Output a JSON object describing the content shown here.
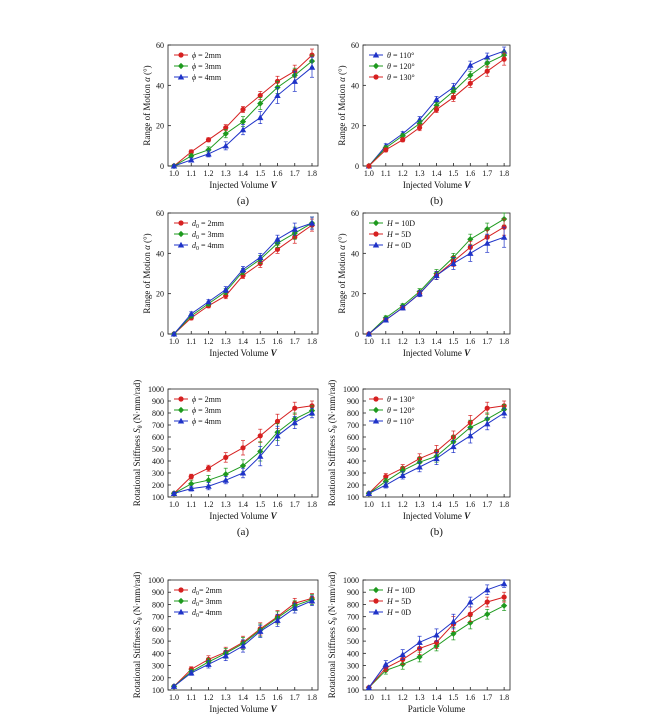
{
  "colors": {
    "red": "#d62020",
    "green": "#1e9a1e",
    "blue": "#1f33c8",
    "axis": "#222222"
  },
  "chart_data": [
    {
      "type": "line",
      "id": "rom-phi",
      "title": "",
      "xlabel": "Injected Volume",
      "xvar": "V",
      "ylabel": "Range of Motion",
      "yvar": "α",
      "yunit": "(°)",
      "xlim": [
        1.0,
        1.8
      ],
      "ylim": [
        0,
        60
      ],
      "xticks": [
        "1.0",
        "1.1",
        "1.2",
        "1.3",
        "1.4",
        "1.5",
        "1.6",
        "1.7",
        "1.8"
      ],
      "yticks": [
        "0",
        "20",
        "40",
        "60"
      ],
      "legend": "top-left",
      "caption": "(a)",
      "x": [
        1.0,
        1.1,
        1.2,
        1.3,
        1.4,
        1.5,
        1.6,
        1.7,
        1.8
      ],
      "series": [
        {
          "name": "ϕ = 2mm",
          "color": "red",
          "marker": "circle",
          "values": [
            0,
            7,
            13,
            19,
            28,
            35,
            42,
            47,
            55
          ],
          "err": [
            0.5,
            1,
            1,
            1.5,
            1.5,
            2,
            2.5,
            3,
            3
          ]
        },
        {
          "name": "ϕ = 3mm",
          "color": "green",
          "marker": "diamond",
          "values": [
            0,
            5,
            8,
            16,
            22,
            31,
            39,
            45,
            52
          ],
          "err": [
            0.5,
            1,
            1.5,
            2,
            2.5,
            3,
            3,
            3.5,
            3
          ]
        },
        {
          "name": "ϕ = 4mm",
          "color": "blue",
          "marker": "triangle",
          "values": [
            0,
            3,
            6,
            10,
            18,
            24,
            35,
            42,
            49
          ],
          "err": [
            0.5,
            1,
            1.5,
            2,
            2.5,
            3,
            4,
            5,
            5
          ]
        }
      ]
    },
    {
      "type": "line",
      "id": "rom-theta",
      "title": "",
      "xlabel": "Injected Volume",
      "xvar": "V",
      "ylabel": "Range of Motion",
      "yvar": "α",
      "yunit": "(°)",
      "xlim": [
        1.0,
        1.8
      ],
      "ylim": [
        0,
        60
      ],
      "xticks": [
        "1.0",
        "1.1",
        "1.2",
        "1.3",
        "1.4",
        "1.5",
        "1.6",
        "1.7",
        "1.8"
      ],
      "yticks": [
        "0",
        "20",
        "40",
        "60"
      ],
      "legend": "top-left",
      "caption": "(b)",
      "x": [
        1.0,
        1.1,
        1.2,
        1.3,
        1.4,
        1.5,
        1.6,
        1.7,
        1.8
      ],
      "series": [
        {
          "name": "θ = 110°",
          "color": "blue",
          "marker": "triangle",
          "values": [
            0,
            10,
            16,
            23,
            33,
            39,
            50,
            54,
            57
          ],
          "err": [
            0.5,
            1,
            1,
            1.5,
            1.5,
            2,
            2,
            2,
            2
          ]
        },
        {
          "name": "θ = 120°",
          "color": "green",
          "marker": "diamond",
          "values": [
            0,
            9,
            15,
            21,
            30,
            37,
            45,
            51,
            55
          ],
          "err": [
            0.5,
            1,
            1,
            1.5,
            1.5,
            2,
            2,
            2,
            2
          ]
        },
        {
          "name": "θ = 130°",
          "color": "red",
          "marker": "circle",
          "values": [
            0,
            8,
            13,
            19,
            28,
            34,
            41,
            47,
            53
          ],
          "err": [
            0.5,
            1,
            1,
            1.5,
            1.5,
            2,
            2,
            2.5,
            3
          ]
        }
      ]
    },
    {
      "type": "line",
      "id": "rom-d0",
      "title": "",
      "xlabel": "Injected Volume",
      "xvar": "V",
      "ylabel": "Range of Motion",
      "yvar": "α",
      "yunit": "(°)",
      "xlim": [
        1.0,
        1.8
      ],
      "ylim": [
        0,
        60
      ],
      "xticks": [
        "1.0",
        "1.1",
        "1.2",
        "1.3",
        "1.4",
        "1.5",
        "1.6",
        "1.7",
        "1.8"
      ],
      "yticks": [
        "0",
        "20",
        "40",
        "60"
      ],
      "legend": "top-left",
      "caption": "",
      "x": [
        1.0,
        1.1,
        1.2,
        1.3,
        1.4,
        1.5,
        1.6,
        1.7,
        1.8
      ],
      "series": [
        {
          "name": "d",
          "sub": "0",
          "suffix": " = 2mm",
          "color": "red",
          "marker": "circle",
          "values": [
            0,
            8,
            14,
            19,
            29,
            35,
            42,
            48,
            54
          ],
          "err": [
            0.5,
            1,
            1,
            1.5,
            1.5,
            2,
            2,
            3,
            3
          ]
        },
        {
          "name": "d",
          "sub": "0",
          "suffix": " = 3mm",
          "color": "green",
          "marker": "diamond",
          "values": [
            0,
            9,
            15,
            21,
            31,
            37,
            45,
            50,
            55
          ],
          "err": [
            0.5,
            1,
            1,
            1.5,
            1.5,
            2,
            2,
            3,
            3
          ]
        },
        {
          "name": "d",
          "sub": "0",
          "suffix": " = 4mm",
          "color": "blue",
          "marker": "triangle",
          "values": [
            0,
            10,
            16,
            22,
            32,
            38,
            47,
            52,
            55
          ],
          "err": [
            0.5,
            1,
            1,
            1.5,
            1.5,
            2,
            2,
            3,
            3
          ]
        }
      ]
    },
    {
      "type": "line",
      "id": "rom-h",
      "title": "",
      "xlabel": "Injected Volume",
      "xvar": "V",
      "ylabel": "Range of Motion",
      "yvar": "α",
      "yunit": "(°)",
      "xlim": [
        1.0,
        1.8
      ],
      "ylim": [
        0,
        60
      ],
      "xticks": [
        "1.0",
        "1.1",
        "1.2",
        "1.3",
        "1.4",
        "1.5",
        "1.6",
        "1.7",
        "1.8"
      ],
      "yticks": [
        "0",
        "20",
        "40",
        "60"
      ],
      "legend": "top-left",
      "caption": "",
      "x": [
        1.0,
        1.1,
        1.2,
        1.3,
        1.4,
        1.5,
        1.6,
        1.7,
        1.8
      ],
      "series": [
        {
          "name": "H = 10D",
          "color": "green",
          "marker": "diamond",
          "values": [
            0,
            8,
            14,
            21,
            30,
            38,
            47,
            52,
            57
          ],
          "err": [
            0.5,
            1,
            1,
            1.5,
            2,
            2,
            2.5,
            3,
            3
          ]
        },
        {
          "name": "H =  5D",
          "color": "red",
          "marker": "circle",
          "values": [
            0,
            7,
            13,
            20,
            29,
            36,
            43,
            48,
            53
          ],
          "err": [
            0.5,
            1,
            1,
            1.5,
            2,
            2.5,
            3,
            3.5,
            4
          ]
        },
        {
          "name": "H =  0D",
          "color": "blue",
          "marker": "triangle",
          "values": [
            0,
            7,
            13,
            20,
            29,
            35,
            40,
            45,
            48
          ],
          "err": [
            0.5,
            1,
            1,
            1.5,
            2,
            3,
            4,
            4.5,
            5
          ]
        }
      ]
    },
    {
      "type": "line",
      "id": "stiff-phi",
      "title": "",
      "xlabel": "Injected Volume",
      "xvar": "V",
      "ylabel": "Rotational Stiffness",
      "yvar": "S",
      "ysub": "θ",
      "yunit": "(N·mm/rad)",
      "xlim": [
        1.0,
        1.8
      ],
      "ylim": [
        100,
        1000
      ],
      "xticks": [
        "1.0",
        "1.1",
        "1.2",
        "1.3",
        "1.4",
        "1.5",
        "1.6",
        "1.7",
        "1.8"
      ],
      "yticks": [
        "100",
        "200",
        "300",
        "400",
        "500",
        "600",
        "700",
        "800",
        "900",
        "1000"
      ],
      "legend": "top-left",
      "caption": "(a)",
      "x": [
        1.0,
        1.1,
        1.2,
        1.3,
        1.4,
        1.5,
        1.6,
        1.7,
        1.8
      ],
      "series": [
        {
          "name": "ϕ = 2mm",
          "color": "red",
          "marker": "circle",
          "values": [
            130,
            270,
            340,
            430,
            510,
            610,
            730,
            840,
            860
          ],
          "err": [
            10,
            20,
            25,
            40,
            60,
            55,
            60,
            50,
            40
          ]
        },
        {
          "name": "ϕ = 3mm",
          "color": "green",
          "marker": "diamond",
          "values": [
            130,
            210,
            240,
            290,
            360,
            480,
            640,
            750,
            820
          ],
          "err": [
            10,
            30,
            40,
            50,
            50,
            80,
            70,
            50,
            40
          ]
        },
        {
          "name": "ϕ = 4mm",
          "color": "blue",
          "marker": "triangle",
          "values": [
            130,
            170,
            190,
            240,
            300,
            440,
            610,
            720,
            800
          ],
          "err": [
            10,
            20,
            30,
            30,
            40,
            80,
            80,
            50,
            40
          ]
        }
      ]
    },
    {
      "type": "line",
      "id": "stiff-theta",
      "title": "",
      "xlabel": "Injected Volume",
      "xvar": "V",
      "ylabel": "Rotational Stiffness",
      "yvar": "S",
      "ysub": "θ",
      "yunit": "(N·mm/rad)",
      "xlim": [
        1.0,
        1.8
      ],
      "ylim": [
        100,
        1000
      ],
      "xticks": [
        "1.0",
        "1.1",
        "1.2",
        "1.3",
        "1.4",
        "1.5",
        "1.6",
        "1.7",
        "1.8"
      ],
      "yticks": [
        "100",
        "200",
        "300",
        "400",
        "500",
        "600",
        "700",
        "800",
        "900",
        "1000"
      ],
      "legend": "top-left",
      "caption": "(b)",
      "x": [
        1.0,
        1.1,
        1.2,
        1.3,
        1.4,
        1.5,
        1.6,
        1.7,
        1.8
      ],
      "series": [
        {
          "name": "θ = 130°",
          "color": "red",
          "marker": "circle",
          "values": [
            130,
            270,
            340,
            420,
            480,
            600,
            720,
            840,
            860
          ],
          "err": [
            10,
            25,
            30,
            40,
            50,
            50,
            60,
            50,
            40
          ]
        },
        {
          "name": "θ = 120°",
          "color": "green",
          "marker": "diamond",
          "values": [
            130,
            230,
            320,
            390,
            440,
            560,
            680,
            750,
            830
          ],
          "err": [
            10,
            25,
            30,
            40,
            50,
            50,
            60,
            50,
            40
          ]
        },
        {
          "name": "θ = 110°",
          "color": "blue",
          "marker": "triangle",
          "values": [
            130,
            200,
            280,
            350,
            420,
            520,
            610,
            710,
            800
          ],
          "err": [
            10,
            25,
            30,
            40,
            50,
            50,
            60,
            50,
            40
          ]
        }
      ]
    },
    {
      "type": "line",
      "id": "stiff-d0",
      "title": "",
      "xlabel": "Injected Volume",
      "xvar": "V",
      "ylabel": "Rotational Stiffness",
      "yvar": "S",
      "ysub": "θ",
      "yunit": "(N·mm/rad)",
      "xlim": [
        1.0,
        1.8
      ],
      "ylim": [
        100,
        1000
      ],
      "xticks": [
        "1.0",
        "1.1",
        "1.2",
        "1.3",
        "1.4",
        "1.5",
        "1.6",
        "1.7",
        "1.8"
      ],
      "yticks": [
        "100",
        "200",
        "300",
        "400",
        "500",
        "600",
        "700",
        "800",
        "900",
        "1000"
      ],
      "legend": "top-left",
      "caption": "",
      "x": [
        1.0,
        1.1,
        1.2,
        1.3,
        1.4,
        1.5,
        1.6,
        1.7,
        1.8
      ],
      "series": [
        {
          "name": "d",
          "sub": "0",
          "suffix": "= 2mm",
          "color": "red",
          "marker": "circle",
          "values": [
            130,
            270,
            350,
            410,
            490,
            600,
            700,
            810,
            850
          ],
          "err": [
            10,
            20,
            30,
            40,
            50,
            50,
            50,
            40,
            40
          ]
        },
        {
          "name": "d",
          "sub": "0",
          "suffix": "= 3mm",
          "color": "green",
          "marker": "diamond",
          "values": [
            130,
            250,
            330,
            400,
            480,
            590,
            690,
            790,
            840
          ],
          "err": [
            10,
            20,
            30,
            40,
            50,
            50,
            50,
            40,
            40
          ]
        },
        {
          "name": "d",
          "sub": "0",
          "suffix": "= 4mm",
          "color": "blue",
          "marker": "triangle",
          "values": [
            130,
            240,
            310,
            380,
            460,
            580,
            670,
            770,
            830
          ],
          "err": [
            10,
            20,
            30,
            40,
            50,
            50,
            50,
            40,
            40
          ]
        }
      ]
    },
    {
      "type": "line",
      "id": "stiff-h",
      "title": "",
      "xlabel": "Particle Volume",
      "xvar": "",
      "ylabel": "Rotational Stiffness",
      "yvar": "S",
      "ysub": "θ",
      "yunit": "(N·mm/rad)",
      "xlim": [
        1.0,
        1.8
      ],
      "ylim": [
        100,
        1000
      ],
      "xticks": [
        "1.0",
        "1.1",
        "1.2",
        "1.3",
        "1.4",
        "1.5",
        "1.6",
        "1.7",
        "1.8"
      ],
      "yticks": [
        "100",
        "200",
        "300",
        "400",
        "500",
        "600",
        "700",
        "800",
        "900",
        "1000"
      ],
      "legend": "top-left",
      "caption": "",
      "x": [
        1.0,
        1.1,
        1.2,
        1.3,
        1.4,
        1.5,
        1.6,
        1.7,
        1.8
      ],
      "series": [
        {
          "name": "H = 10D",
          "color": "green",
          "marker": "diamond",
          "values": [
            120,
            260,
            310,
            370,
            460,
            560,
            650,
            720,
            790
          ],
          "err": [
            10,
            30,
            40,
            40,
            40,
            50,
            50,
            40,
            40
          ]
        },
        {
          "name": "H = 5D",
          "color": "red",
          "marker": "circle",
          "values": [
            120,
            280,
            350,
            440,
            490,
            640,
            720,
            820,
            860
          ],
          "err": [
            10,
            30,
            40,
            50,
            50,
            60,
            60,
            40,
            40
          ]
        },
        {
          "name": "H = 0D",
          "color": "blue",
          "marker": "triangle",
          "values": [
            120,
            310,
            390,
            490,
            550,
            660,
            820,
            920,
            970
          ],
          "err": [
            10,
            30,
            40,
            50,
            50,
            60,
            40,
            40,
            30
          ]
        }
      ]
    }
  ]
}
